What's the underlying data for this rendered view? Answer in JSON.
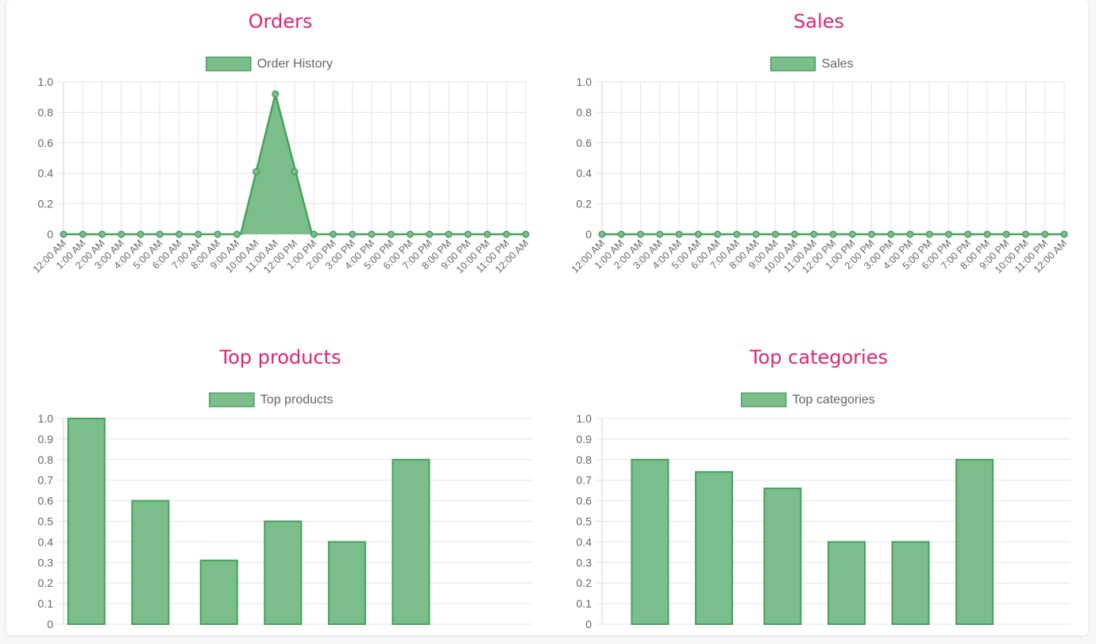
{
  "colors": {
    "title": "#e4236e",
    "fill": "#7bbd8b",
    "stroke": "#46a15e",
    "grid": "#e4e4e4",
    "tick": "#666666"
  },
  "chart_data": [
    {
      "id": "orders",
      "type": "area",
      "title": "Orders",
      "legend": "Order History",
      "categories": [
        "12:00 AM",
        "1:00 AM",
        "2:00 AM",
        "3:00 AM",
        "4:00 AM",
        "5:00 AM",
        "6:00 AM",
        "7:00 AM",
        "8:00 AM",
        "9:00 AM",
        "10:00 AM",
        "11:00 AM",
        "12:00 PM",
        "1:00 PM",
        "2:00 PM",
        "3:00 PM",
        "4:00 PM",
        "5:00 PM",
        "6:00 PM",
        "7:00 PM",
        "8:00 PM",
        "9:00 PM",
        "10:00 PM",
        "11:00 PM",
        "12:00 AM"
      ],
      "points": [
        {
          "x": 0,
          "y": 0
        },
        {
          "x": 1,
          "y": 0
        },
        {
          "x": 2,
          "y": 0
        },
        {
          "x": 3,
          "y": 0
        },
        {
          "x": 4,
          "y": 0
        },
        {
          "x": 5,
          "y": 0
        },
        {
          "x": 6,
          "y": 0
        },
        {
          "x": 7,
          "y": 0
        },
        {
          "x": 8,
          "y": 0
        },
        {
          "x": 9,
          "y": 0
        },
        {
          "x": 10,
          "y": 0.41
        },
        {
          "x": 11,
          "y": 0.92
        },
        {
          "x": 12,
          "y": 0.41
        },
        {
          "x": 13,
          "y": 0
        },
        {
          "x": 14,
          "y": 0
        },
        {
          "x": 15,
          "y": 0
        },
        {
          "x": 16,
          "y": 0
        },
        {
          "x": 17,
          "y": 0
        },
        {
          "x": 18,
          "y": 0
        },
        {
          "x": 19,
          "y": 0
        },
        {
          "x": 20,
          "y": 0
        },
        {
          "x": 21,
          "y": 0
        },
        {
          "x": 22,
          "y": 0
        },
        {
          "x": 23,
          "y": 0
        },
        {
          "x": 24,
          "y": 0
        }
      ],
      "area_outline": [
        {
          "x": 0,
          "y": 0
        },
        {
          "x": 9.2,
          "y": 0
        },
        {
          "x": 11,
          "y": 0.92
        },
        {
          "x": 12.9,
          "y": 0
        },
        {
          "x": 24,
          "y": 0
        }
      ],
      "ylim": [
        0,
        1.0
      ],
      "yticks": [
        "0",
        "0.2",
        "0.4",
        "0.6",
        "0.8",
        "1.0"
      ],
      "grid": true,
      "legend_position": "top"
    },
    {
      "id": "sales",
      "type": "line",
      "title": "Sales",
      "legend": "Sales",
      "categories": [
        "12:00 AM",
        "1:00 AM",
        "2:00 AM",
        "3:00 AM",
        "4:00 AM",
        "5:00 AM",
        "6:00 AM",
        "7:00 AM",
        "8:00 AM",
        "9:00 AM",
        "10:00 AM",
        "11:00 AM",
        "12:00 PM",
        "1:00 PM",
        "2:00 PM",
        "3:00 PM",
        "4:00 PM",
        "5:00 PM",
        "6:00 PM",
        "7:00 PM",
        "8:00 PM",
        "9:00 PM",
        "10:00 PM",
        "11:00 PM",
        "12:00 AM"
      ],
      "values": [
        0,
        0,
        0,
        0,
        0,
        0,
        0,
        0,
        0,
        0,
        0,
        0,
        0,
        0,
        0,
        0,
        0,
        0,
        0,
        0,
        0,
        0,
        0,
        0,
        0
      ],
      "ylim": [
        0,
        1.0
      ],
      "yticks": [
        "0",
        "0.2",
        "0.4",
        "0.6",
        "0.8",
        "1.0"
      ],
      "grid": true,
      "legend_position": "top"
    },
    {
      "id": "products",
      "type": "bar",
      "title": "Top products",
      "legend": "Top products",
      "bars": [
        {
          "x0": 0.2,
          "x1": 1.8,
          "value": 1.0
        },
        {
          "x0": 3.0,
          "x1": 4.6,
          "value": 0.6
        },
        {
          "x0": 6.0,
          "x1": 7.6,
          "value": 0.31
        },
        {
          "x0": 8.8,
          "x1": 10.4,
          "value": 0.5
        },
        {
          "x0": 11.6,
          "x1": 13.2,
          "value": 0.4
        },
        {
          "x0": 14.4,
          "x1": 16.0,
          "value": 0.8
        }
      ],
      "xlim": [
        0,
        20.5
      ],
      "ylim": [
        0,
        1.0
      ],
      "yticks": [
        "0",
        "0.1",
        "0.2",
        "0.3",
        "0.4",
        "0.5",
        "0.6",
        "0.7",
        "0.8",
        "0.9",
        "1.0"
      ],
      "grid": true,
      "legend_position": "top"
    },
    {
      "id": "categories",
      "type": "bar",
      "title": "Top categories",
      "legend": "Top categories",
      "bars": [
        {
          "x0": 1.3,
          "x1": 2.9,
          "value": 0.8
        },
        {
          "x0": 4.1,
          "x1": 5.7,
          "value": 0.74
        },
        {
          "x0": 7.1,
          "x1": 8.7,
          "value": 0.66
        },
        {
          "x0": 9.9,
          "x1": 11.5,
          "value": 0.4
        },
        {
          "x0": 12.7,
          "x1": 14.3,
          "value": 0.4
        },
        {
          "x0": 15.5,
          "x1": 17.1,
          "value": 0.8
        }
      ],
      "xlim": [
        0,
        20.5
      ],
      "ylim": [
        0,
        1.0
      ],
      "yticks": [
        "0",
        "0.1",
        "0.2",
        "0.3",
        "0.4",
        "0.5",
        "0.6",
        "0.7",
        "0.8",
        "0.9",
        "1.0"
      ],
      "grid": true,
      "legend_position": "top"
    }
  ]
}
